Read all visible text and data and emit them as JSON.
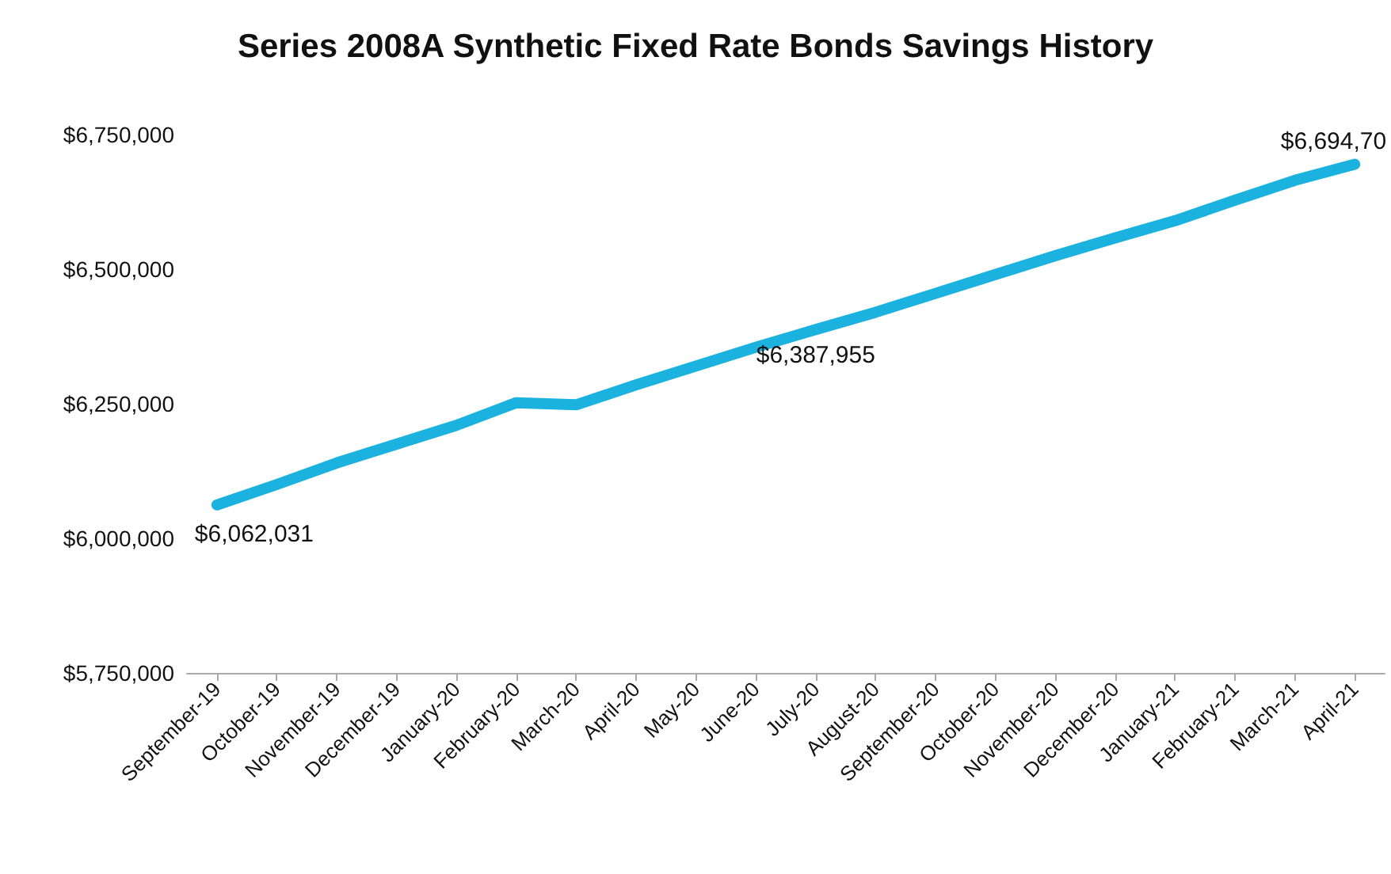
{
  "chart_data": {
    "type": "line",
    "title": "Series 2008A Synthetic Fixed Rate Bonds Savings History",
    "categories": [
      "September-19",
      "October-19",
      "November-19",
      "December-19",
      "January-20",
      "February-20",
      "March-20",
      "April-20",
      "May-20",
      "June-20",
      "July-20",
      "August-20",
      "September-20",
      "October-20",
      "November-20",
      "December-20",
      "January-21",
      "February-21",
      "March-21",
      "April-21"
    ],
    "series": [
      {
        "color": "#1cb2e0",
        "values": [
          6062031,
          6100000,
          6140000,
          6175000,
          6210000,
          6252000,
          6248000,
          6285000,
          6320000,
          6355000,
          6387955,
          6420000,
          6455000,
          6490000,
          6525000,
          6558000,
          6590000,
          6628000,
          6665000,
          6694700
        ],
        "value_labels": [
          "$6,062,031",
          null,
          null,
          null,
          null,
          null,
          null,
          null,
          null,
          null,
          "$6,387,955",
          null,
          null,
          null,
          null,
          null,
          null,
          null,
          null,
          "$6,694,70"
        ]
      }
    ],
    "ylim": [
      5750000,
      6750000
    ],
    "yticks": [
      {
        "value": 5750000,
        "label": "$5,750,000"
      },
      {
        "value": 6000000,
        "label": "$6,000,000"
      },
      {
        "value": 6250000,
        "label": "$6,250,000"
      },
      {
        "value": 6500000,
        "label": "$6,500,000"
      },
      {
        "value": 6750000,
        "label": "$6,750,000"
      }
    ],
    "grid": false,
    "marker": "none",
    "line_style": "solid"
  }
}
